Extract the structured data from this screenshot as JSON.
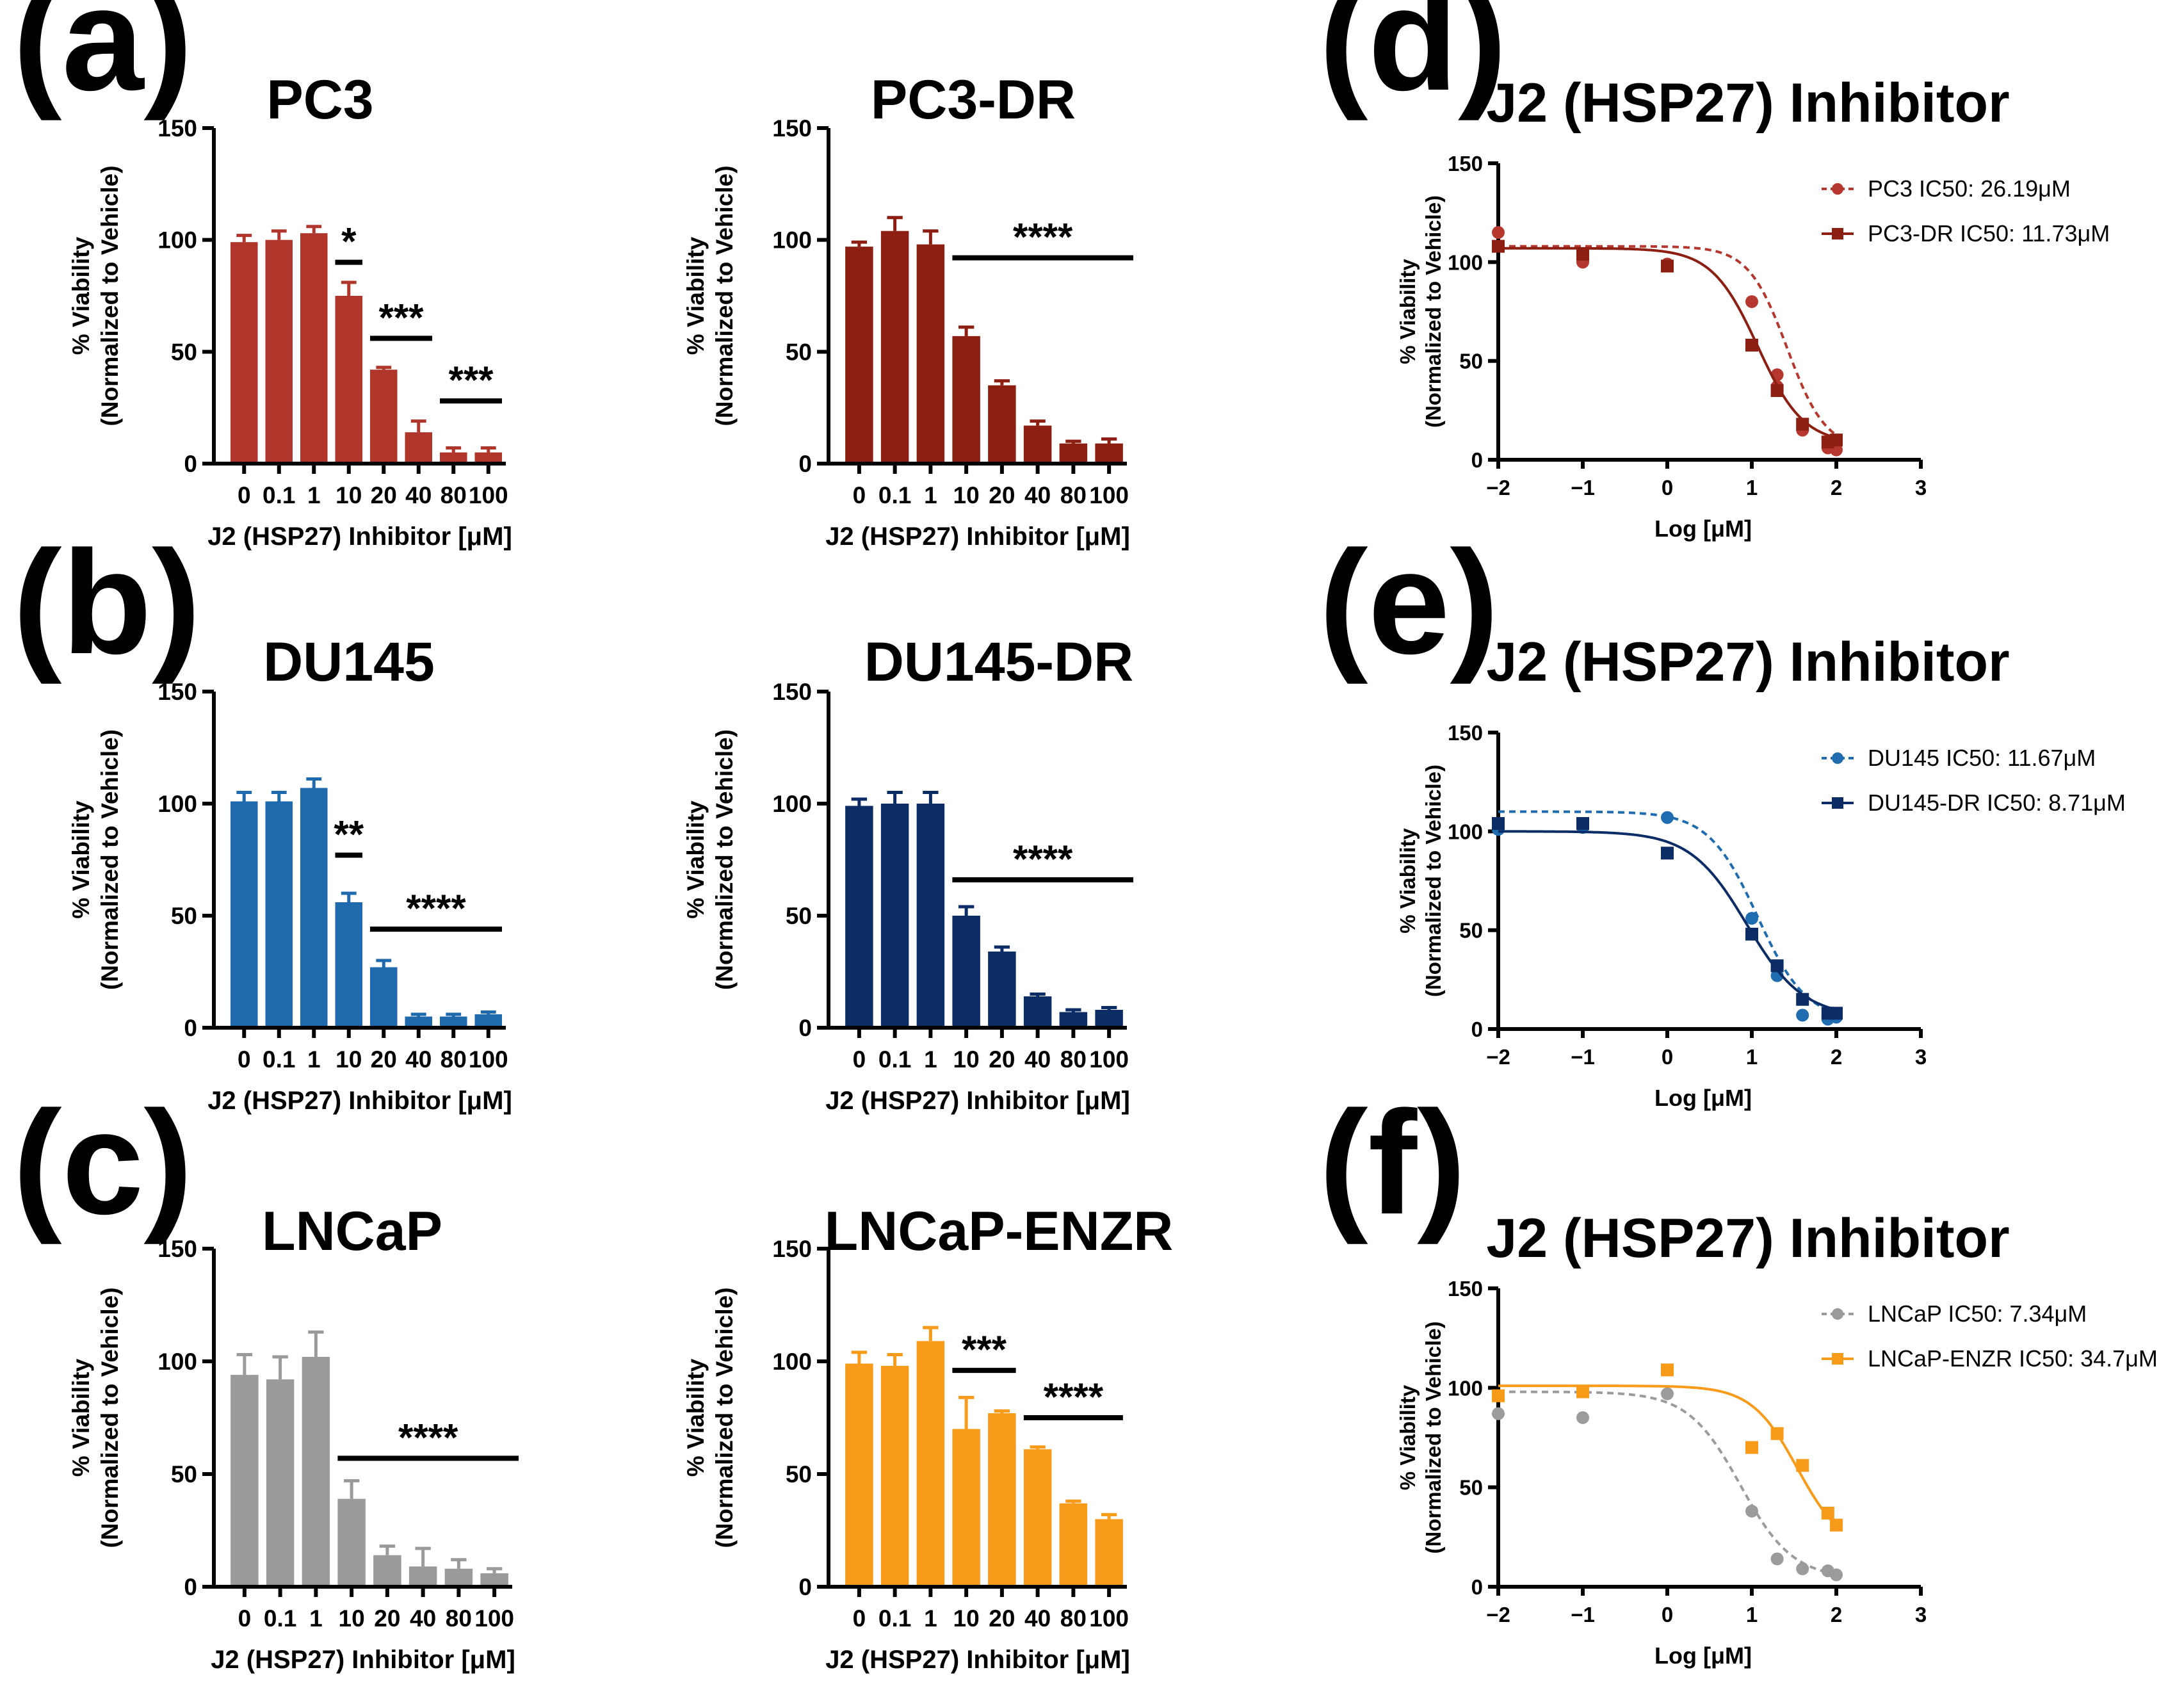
{
  "figure": {
    "bar_panels": [
      {
        "id": "a-left",
        "letter": "(a)",
        "title": "PC3",
        "color": "#b0352a",
        "categories": [
          "0",
          "0.1",
          "1",
          "10",
          "20",
          "40",
          "80",
          "100"
        ],
        "values": [
          99,
          100,
          103,
          75,
          42,
          14,
          5,
          5
        ],
        "errors": [
          3,
          4,
          3,
          6,
          1,
          5,
          2,
          2
        ],
        "ylim": [
          0,
          150
        ],
        "yticks": [
          "0",
          "50",
          "100",
          "150"
        ],
        "ylabel": "% Viability",
        "ylabel2": "(Normalized to Vehicle)",
        "xlabel": "J2 (HSP27) Inhibitor [μM]",
        "sig": [
          {
            "label": "*",
            "from": 3,
            "to": 3,
            "y": 90
          },
          {
            "label": "***",
            "from": 4,
            "to": 5,
            "y": 56
          },
          {
            "label": "***",
            "from": 6,
            "to": 7,
            "y": 28
          }
        ]
      },
      {
        "id": "a-right",
        "letter": "",
        "title": "PC3-DR",
        "color": "#8c1f12",
        "categories": [
          "0",
          "0.1",
          "1",
          "10",
          "20",
          "40",
          "80",
          "100"
        ],
        "values": [
          97,
          104,
          98,
          57,
          35,
          17,
          9,
          9
        ],
        "errors": [
          2,
          6,
          6,
          4,
          2,
          2,
          1,
          2
        ],
        "ylim": [
          0,
          150
        ],
        "yticks": [
          "0",
          "50",
          "100",
          "150"
        ],
        "ylabel": "% Viability",
        "ylabel2": "(Normalized to Vehicle)",
        "xlabel": "J2 (HSP27) Inhibitor [μM]",
        "sig": [
          {
            "label": "****",
            "from": 3,
            "to": 7,
            "y": 92
          }
        ]
      },
      {
        "id": "b-left",
        "letter": "(b)",
        "title": "DU145",
        "color": "#1f69ad",
        "categories": [
          "0",
          "0.1",
          "1",
          "10",
          "20",
          "40",
          "80",
          "100"
        ],
        "values": [
          101,
          101,
          107,
          56,
          27,
          5,
          5,
          6
        ],
        "errors": [
          4,
          4,
          4,
          4,
          3,
          1,
          1,
          1
        ],
        "ylim": [
          0,
          150
        ],
        "yticks": [
          "0",
          "50",
          "100",
          "150"
        ],
        "ylabel": "% Viability",
        "ylabel2": "(Normalized to Vehicle)",
        "xlabel": "J2 (HSP27) Inhibitor [μM]",
        "sig": [
          {
            "label": "**",
            "from": 3,
            "to": 3,
            "y": 77
          },
          {
            "label": "****",
            "from": 4,
            "to": 7,
            "y": 44
          }
        ]
      },
      {
        "id": "b-right",
        "letter": "",
        "title": "DU145-DR",
        "color": "#0c2c66",
        "categories": [
          "0",
          "0.1",
          "1",
          "10",
          "20",
          "40",
          "80",
          "100"
        ],
        "values": [
          99,
          100,
          100,
          50,
          34,
          14,
          7,
          8
        ],
        "errors": [
          3,
          5,
          5,
          4,
          2,
          1,
          1,
          1
        ],
        "ylim": [
          0,
          150
        ],
        "yticks": [
          "0",
          "50",
          "100",
          "150"
        ],
        "ylabel": "% Viability",
        "ylabel2": "(Normalized to Vehicle)",
        "xlabel": "J2 (HSP27) Inhibitor [μM]",
        "sig": [
          {
            "label": "****",
            "from": 3,
            "to": 7,
            "y": 66
          }
        ]
      },
      {
        "id": "c-left",
        "letter": "(c)",
        "title": "LNCaP",
        "color": "#9a9a9a",
        "categories": [
          "0",
          "0.1",
          "1",
          "10",
          "20",
          "40",
          "80",
          "100"
        ],
        "values": [
          94,
          92,
          102,
          39,
          14,
          9,
          8,
          6
        ],
        "errors": [
          9,
          10,
          11,
          8,
          4,
          8,
          4,
          2
        ],
        "ylim": [
          0,
          150
        ],
        "yticks": [
          "0",
          "50",
          "100",
          "150"
        ],
        "ylabel": "% Viability",
        "ylabel2": "(Normalized to Vehicle)",
        "xlabel": "J2 (HSP27) Inhibitor [μM]",
        "sig": [
          {
            "label": "****",
            "from": 3,
            "to": 7,
            "y": 57
          }
        ]
      },
      {
        "id": "c-right",
        "letter": "",
        "title": "LNCaP-ENZR",
        "color": "#f89a1a",
        "categories": [
          "0",
          "0.1",
          "1",
          "10",
          "20",
          "40",
          "80",
          "100"
        ],
        "values": [
          99,
          98,
          109,
          70,
          77,
          61,
          37,
          30
        ],
        "errors": [
          5,
          5,
          6,
          14,
          1,
          1,
          1,
          2
        ],
        "ylim": [
          0,
          150
        ],
        "yticks": [
          "0",
          "50",
          "100",
          "150"
        ],
        "ylabel": "% Viability",
        "ylabel2": "(Normalized to Vehicle)",
        "xlabel": "J2 (HSP27) Inhibitor [μM]",
        "sig": [
          {
            "label": "***",
            "from": 3,
            "to": 4,
            "y": 96
          },
          {
            "label": "****",
            "from": 5,
            "to": 7,
            "y": 75
          }
        ]
      }
    ],
    "curve_panels": [
      {
        "id": "d",
        "letter": "(d)",
        "title": "J2 (HSP27) Inhibitor",
        "xlim": [
          -2,
          3
        ],
        "xticks": [
          "−2",
          "−1",
          "0",
          "1",
          "2",
          "3"
        ],
        "ylim": [
          0,
          150
        ],
        "yticks": [
          "0",
          "50",
          "100",
          "150"
        ],
        "xlabel": "Log [μM]",
        "ylabel": "% Viability",
        "ylabel2": "(Normalized to Vehicle)",
        "series": [
          {
            "name": "PC3 IC50: 26.19μM",
            "color": "#b5372e",
            "marker": "circle",
            "dashed": true,
            "top": 108,
            "bottom": 5,
            "logic50": 1.418,
            "hill": 1.9,
            "x": [
              -2,
              -1,
              -1,
              0,
              1,
              1.3,
              1.3,
              1.6,
              1.9,
              2
            ],
            "y": [
              115,
              100,
              102,
              99,
              80,
              43,
              37,
              15,
              6,
              5
            ]
          },
          {
            "name": "PC3-DR IC50: 11.73μM",
            "color": "#8c1f12",
            "marker": "square",
            "dashed": false,
            "top": 107,
            "bottom": 8,
            "logic50": 1.069,
            "hill": 1.6,
            "x": [
              -2,
              -1,
              0,
              1,
              1.3,
              1.6,
              1.9,
              2
            ],
            "y": [
              108,
              104,
              98,
              58,
              35,
              18,
              9,
              10
            ]
          }
        ]
      },
      {
        "id": "e",
        "letter": "(e)",
        "title": "J2 (HSP27) Inhibitor",
        "xlim": [
          -2,
          3
        ],
        "xticks": [
          "−2",
          "−1",
          "0",
          "1",
          "2",
          "3"
        ],
        "ylim": [
          0,
          150
        ],
        "yticks": [
          "0",
          "50",
          "100",
          "150"
        ],
        "xlabel": "Log [μM]",
        "ylabel": "% Viability",
        "ylabel2": "(Normalized to Vehicle)",
        "series": [
          {
            "name": "DU145 IC50: 11.67μM",
            "color": "#1f6cb0",
            "marker": "circle",
            "dashed": true,
            "top": 110,
            "bottom": 4,
            "logic50": 1.067,
            "hill": 1.5,
            "x": [
              -2,
              -1,
              0,
              1,
              1.3,
              1.6,
              1.9,
              2
            ],
            "y": [
              101,
              102,
              107,
              56,
              27,
              7,
              5,
              6
            ]
          },
          {
            "name": "DU145-DR IC50: 8.71μM",
            "color": "#0c2c66",
            "marker": "square",
            "dashed": false,
            "top": 100,
            "bottom": 6,
            "logic50": 0.94,
            "hill": 1.3,
            "x": [
              -2,
              -1,
              0,
              1,
              1.3,
              1.6,
              1.9,
              2
            ],
            "y": [
              104,
              104,
              89,
              48,
              32,
              15,
              8,
              8
            ]
          }
        ]
      },
      {
        "id": "f",
        "letter": "(f)",
        "title": "J2 (HSP27) Inhibitor",
        "xlim": [
          -2,
          3
        ],
        "xticks": [
          "−2",
          "−1",
          "0",
          "1",
          "2",
          "3"
        ],
        "ylim": [
          0,
          150
        ],
        "yticks": [
          "0",
          "50",
          "100",
          "150"
        ],
        "xlabel": "Log [μM]",
        "ylabel": "% Viability",
        "ylabel2": "(Normalized to Vehicle)",
        "series": [
          {
            "name": "LNCaP IC50: 7.34μM",
            "color": "#9b9b9b",
            "marker": "circle",
            "dashed": true,
            "top": 98,
            "bottom": 4,
            "logic50": 0.866,
            "hill": 1.4,
            "x": [
              -2,
              -1,
              0,
              1,
              1.3,
              1.6,
              1.9,
              2
            ],
            "y": [
              87,
              85,
              97,
              38,
              14,
              9,
              8,
              6
            ]
          },
          {
            "name": "LNCaP-ENZR IC50: 34.7μM",
            "color": "#f89a1a",
            "marker": "square",
            "dashed": false,
            "top": 101,
            "bottom": 18,
            "logic50": 1.54,
            "hill": 1.6,
            "x": [
              -2,
              -1,
              0,
              1,
              1.3,
              1.6,
              1.9,
              2
            ],
            "y": [
              96,
              98,
              109,
              70,
              77,
              61,
              37,
              31
            ]
          }
        ]
      }
    ]
  },
  "chart_data": [
    {
      "type": "bar",
      "title": "PC3",
      "categories": [
        "0",
        "0.1",
        "1",
        "10",
        "20",
        "40",
        "80",
        "100"
      ],
      "values": [
        99,
        100,
        103,
        75,
        42,
        14,
        5,
        5
      ],
      "xlabel": "J2 (HSP27) Inhibitor [μM]",
      "ylabel": "% Viability (Normalized to Vehicle)",
      "ylim": [
        0,
        150
      ]
    },
    {
      "type": "bar",
      "title": "PC3-DR",
      "categories": [
        "0",
        "0.1",
        "1",
        "10",
        "20",
        "40",
        "80",
        "100"
      ],
      "values": [
        97,
        104,
        98,
        57,
        35,
        17,
        9,
        9
      ],
      "xlabel": "J2 (HSP27) Inhibitor [μM]",
      "ylabel": "% Viability (Normalized to Vehicle)",
      "ylim": [
        0,
        150
      ]
    },
    {
      "type": "bar",
      "title": "DU145",
      "categories": [
        "0",
        "0.1",
        "1",
        "10",
        "20",
        "40",
        "80",
        "100"
      ],
      "values": [
        101,
        101,
        107,
        56,
        27,
        5,
        5,
        6
      ],
      "xlabel": "J2 (HSP27) Inhibitor [μM]",
      "ylabel": "% Viability (Normalized to Vehicle)",
      "ylim": [
        0,
        150
      ]
    },
    {
      "type": "bar",
      "title": "DU145-DR",
      "categories": [
        "0",
        "0.1",
        "1",
        "10",
        "20",
        "40",
        "80",
        "100"
      ],
      "values": [
        99,
        100,
        100,
        50,
        34,
        14,
        7,
        8
      ],
      "xlabel": "J2 (HSP27) Inhibitor [μM]",
      "ylabel": "% Viability (Normalized to Vehicle)",
      "ylim": [
        0,
        150
      ]
    },
    {
      "type": "bar",
      "title": "LNCaP",
      "categories": [
        "0",
        "0.1",
        "1",
        "10",
        "20",
        "40",
        "80",
        "100"
      ],
      "values": [
        94,
        92,
        102,
        39,
        14,
        9,
        8,
        6
      ],
      "xlabel": "J2 (HSP27) Inhibitor [μM]",
      "ylabel": "% Viability (Normalized to Vehicle)",
      "ylim": [
        0,
        150
      ]
    },
    {
      "type": "bar",
      "title": "LNCaP-ENZR",
      "categories": [
        "0",
        "0.1",
        "1",
        "10",
        "20",
        "40",
        "80",
        "100"
      ],
      "values": [
        99,
        98,
        109,
        70,
        77,
        61,
        37,
        30
      ],
      "xlabel": "J2 (HSP27) Inhibitor [μM]",
      "ylabel": "% Viability (Normalized to Vehicle)",
      "ylim": [
        0,
        150
      ]
    },
    {
      "type": "scatter",
      "title": "J2 (HSP27) Inhibitor",
      "xlabel": "Log [μM]",
      "ylabel": "% Viability (Normalized to Vehicle)",
      "xlim": [
        -2,
        3
      ],
      "ylim": [
        0,
        150
      ],
      "series": [
        {
          "name": "PC3 IC50: 26.19μM",
          "x": [
            -2,
            -1,
            -1,
            0,
            1,
            1.3,
            1.3,
            1.6,
            1.9,
            2
          ],
          "y": [
            115,
            100,
            102,
            99,
            80,
            43,
            37,
            15,
            6,
            5
          ]
        },
        {
          "name": "PC3-DR IC50: 11.73μM",
          "x": [
            -2,
            -1,
            0,
            1,
            1.3,
            1.6,
            1.9,
            2
          ],
          "y": [
            108,
            104,
            98,
            58,
            35,
            18,
            9,
            10
          ]
        }
      ]
    },
    {
      "type": "scatter",
      "title": "J2 (HSP27) Inhibitor",
      "xlabel": "Log [μM]",
      "ylabel": "% Viability (Normalized to Vehicle)",
      "xlim": [
        -2,
        3
      ],
      "ylim": [
        0,
        150
      ],
      "series": [
        {
          "name": "DU145 IC50: 11.67μM",
          "x": [
            -2,
            -1,
            0,
            1,
            1.3,
            1.6,
            1.9,
            2
          ],
          "y": [
            101,
            102,
            107,
            56,
            27,
            7,
            5,
            6
          ]
        },
        {
          "name": "DU145-DR IC50: 8.71μM",
          "x": [
            -2,
            -1,
            0,
            1,
            1.3,
            1.6,
            1.9,
            2
          ],
          "y": [
            104,
            104,
            89,
            48,
            32,
            15,
            8,
            8
          ]
        }
      ]
    },
    {
      "type": "scatter",
      "title": "J2 (HSP27) Inhibitor",
      "xlabel": "Log [μM]",
      "ylabel": "% Viability (Normalized to Vehicle)",
      "xlim": [
        -2,
        3
      ],
      "ylim": [
        0,
        150
      ],
      "series": [
        {
          "name": "LNCaP IC50: 7.34μM",
          "x": [
            -2,
            -1,
            0,
            1,
            1.3,
            1.6,
            1.9,
            2
          ],
          "y": [
            87,
            85,
            97,
            38,
            14,
            9,
            8,
            6
          ]
        },
        {
          "name": "LNCaP-ENZR IC50: 34.7μM",
          "x": [
            -2,
            -1,
            0,
            1,
            1.3,
            1.6,
            1.9,
            2
          ],
          "y": [
            96,
            98,
            109,
            70,
            77,
            61,
            37,
            31
          ]
        }
      ]
    }
  ]
}
